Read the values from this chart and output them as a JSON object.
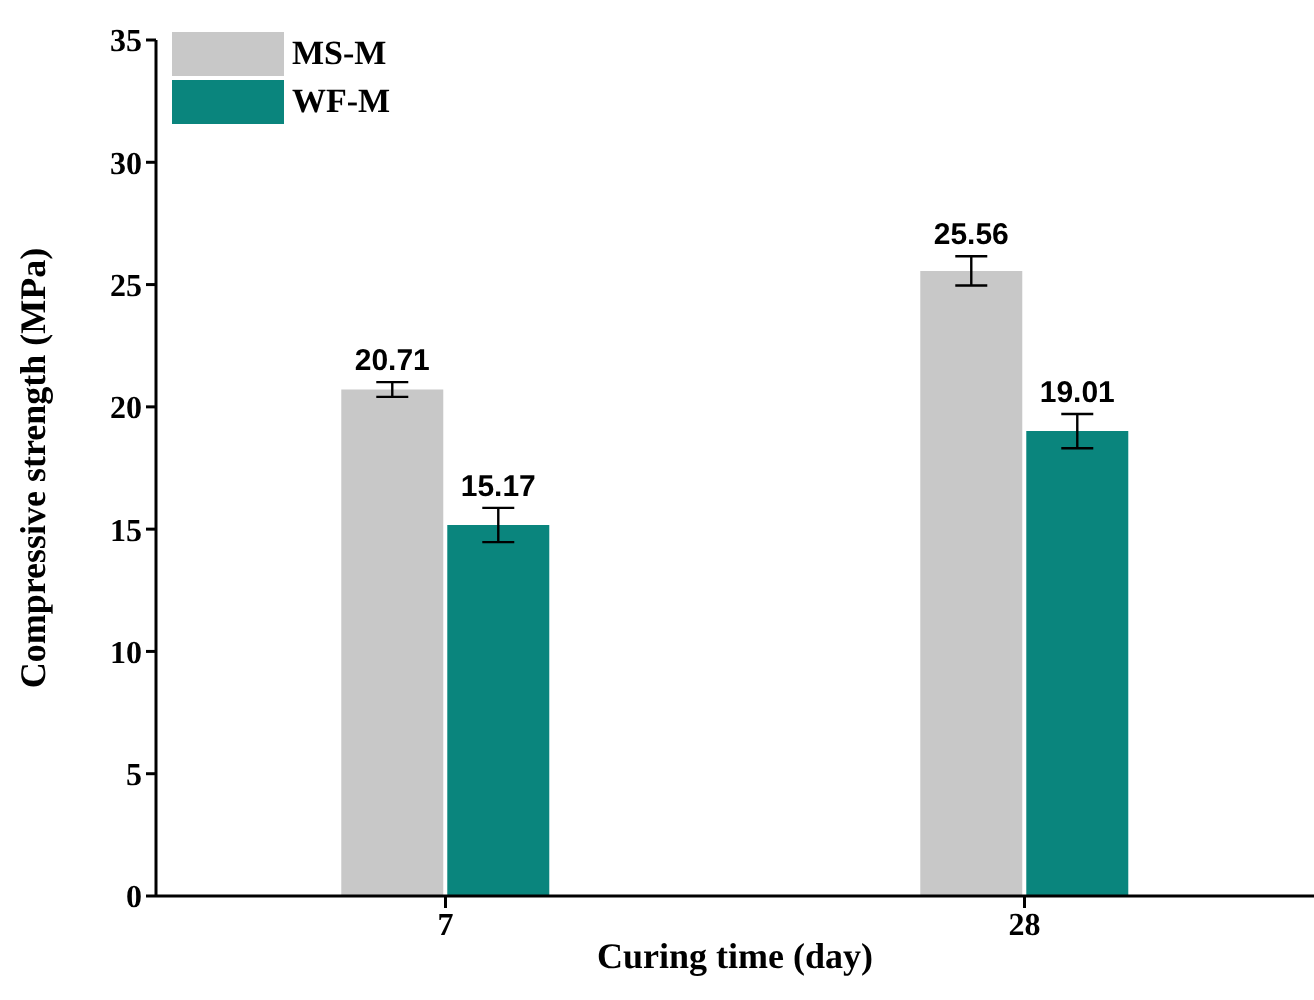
{
  "chart_data": {
    "type": "bar",
    "xlabel": "Curing time (day)",
    "ylabel": "Compressive strength (MPa)",
    "categories": [
      "7",
      "28"
    ],
    "series": [
      {
        "name": "MS-M",
        "color": "#c8c8c8",
        "values": [
          20.71,
          25.56
        ],
        "errors": [
          0.3,
          0.6
        ]
      },
      {
        "name": "WF-M",
        "color": "#0a857d",
        "values": [
          15.17,
          19.01
        ],
        "errors": [
          0.7,
          0.7
        ]
      }
    ],
    "ylim": [
      0,
      35
    ],
    "yticks": [
      0,
      5,
      10,
      15,
      20,
      25,
      30,
      35
    ],
    "data_labels": true,
    "legend": "top left",
    "grid": false
  }
}
